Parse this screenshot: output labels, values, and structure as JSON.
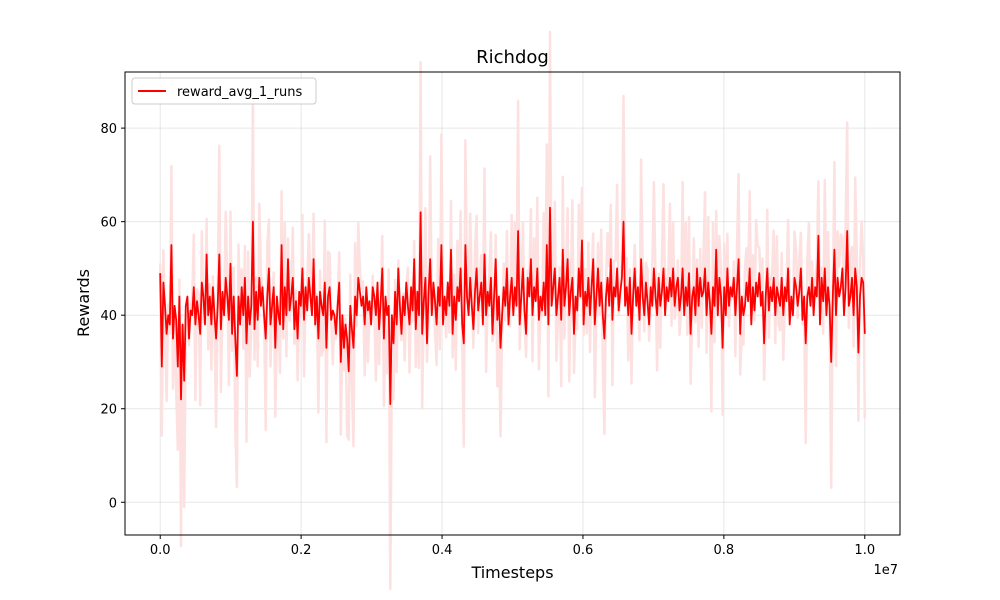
{
  "chart_data": {
    "type": "line",
    "title": "Richdog",
    "xlabel": "Timesteps",
    "ylabel": "Rewards",
    "x_offset_label": "1e7",
    "xlim": [
      -0.05,
      1.05
    ],
    "ylim": [
      -7,
      92
    ],
    "xticks": [
      0.0,
      0.2,
      0.4,
      0.6,
      0.8,
      1.0
    ],
    "xtick_labels": [
      "0.0",
      "0.2",
      "0.4",
      "0.6",
      "0.8",
      "1.0"
    ],
    "yticks": [
      0,
      20,
      40,
      60,
      80
    ],
    "ytick_labels": [
      "0",
      "20",
      "40",
      "60",
      "80"
    ],
    "grid": true,
    "legend": "top-left",
    "series": [
      {
        "name": "reward_avg_1_runs",
        "color": "#ff0000",
        "band_color": "#fde1e1",
        "x_start": 0.0,
        "x_end": 1.0,
        "values": [
          49,
          29,
          47,
          42,
          36,
          40,
          38,
          55,
          35,
          42,
          39,
          29,
          44,
          22,
          38,
          26,
          42,
          44,
          35,
          41,
          40,
          46,
          38,
          43,
          40,
          36,
          47,
          44,
          38,
          53,
          40,
          44,
          38,
          46,
          40,
          35,
          42,
          53,
          37,
          45,
          40,
          48,
          44,
          39,
          51,
          36,
          44,
          35,
          27,
          44,
          38,
          46,
          40,
          48,
          34,
          44,
          38,
          42,
          60,
          37,
          45,
          39,
          48,
          42,
          46,
          40,
          35,
          44,
          50,
          38,
          42,
          46,
          33,
          44,
          40,
          38,
          55,
          37,
          46,
          40,
          52,
          41,
          44,
          48,
          37,
          43,
          35,
          45,
          42,
          50,
          39,
          46,
          41,
          48,
          44,
          40,
          52,
          38,
          44,
          35,
          45,
          42,
          40,
          47,
          33,
          44,
          46,
          39,
          41,
          40,
          36,
          42,
          47,
          30,
          40,
          33,
          38,
          35,
          28,
          42,
          37,
          33,
          44,
          40,
          48,
          45,
          42,
          44,
          38,
          46,
          41,
          43,
          38,
          46,
          44,
          40,
          47,
          37,
          43,
          50,
          35,
          44,
          40,
          42,
          21,
          40,
          34,
          45,
          38,
          50,
          42,
          36,
          44,
          40,
          47,
          42,
          38,
          46,
          41,
          52,
          37,
          45,
          40,
          62,
          36,
          43,
          48,
          34,
          45,
          52,
          40,
          47,
          43,
          38,
          46,
          42,
          55,
          38,
          44,
          40,
          47,
          42,
          54,
          36,
          44,
          39,
          46,
          43,
          50,
          38,
          34,
          55,
          44,
          40,
          48,
          42,
          37,
          45,
          50,
          41,
          44,
          47,
          38,
          53,
          40,
          45,
          42,
          48,
          36,
          44,
          52,
          39,
          44,
          33,
          40,
          46,
          42,
          50,
          38,
          44,
          48,
          40,
          46,
          42,
          58,
          38,
          44,
          50,
          41,
          36,
          48,
          44,
          52,
          40,
          46,
          43,
          50,
          39,
          44,
          41,
          47,
          40,
          55,
          38,
          63,
          42,
          46,
          50,
          40,
          44,
          48,
          39,
          54,
          42,
          46,
          52,
          40,
          45,
          48,
          36,
          44,
          41,
          50,
          44,
          56,
          38,
          45,
          42,
          48,
          40,
          46,
          52,
          38,
          44,
          50,
          42,
          47,
          40,
          35,
          44,
          48,
          42,
          52,
          39,
          46,
          44,
          50,
          41,
          45,
          48,
          60,
          42,
          46,
          40,
          48,
          36,
          44,
          50,
          42,
          46,
          39,
          52,
          44,
          40,
          47,
          43,
          38,
          46,
          42,
          50,
          44,
          40,
          48,
          42,
          45,
          50,
          40,
          46,
          43,
          48,
          44,
          50,
          42,
          46,
          48,
          41,
          44,
          50,
          40,
          46,
          42,
          49,
          36,
          44,
          46,
          40,
          50,
          42,
          48,
          44,
          45,
          50,
          40,
          47,
          43,
          36,
          46,
          42,
          54,
          40,
          48,
          44,
          33,
          46,
          40,
          50,
          42,
          46,
          44,
          48,
          40,
          46,
          52,
          36,
          44,
          40,
          42,
          47,
          43,
          50,
          38,
          46,
          41,
          47,
          44,
          49,
          42,
          45,
          34,
          44,
          50,
          41,
          46,
          43,
          48,
          40,
          46,
          44,
          42,
          48,
          40,
          46,
          43,
          50,
          38,
          44,
          40,
          48,
          46,
          42,
          45,
          50,
          39,
          44,
          34,
          44,
          46,
          42,
          48,
          40,
          46,
          44,
          57,
          38,
          48,
          43,
          50,
          40,
          46,
          42,
          30,
          44,
          54,
          40,
          48,
          44,
          46,
          50,
          40,
          46,
          58,
          42,
          44,
          48,
          40,
          50,
          46,
          32,
          44,
          48,
          47,
          36
        ]
      }
    ]
  }
}
